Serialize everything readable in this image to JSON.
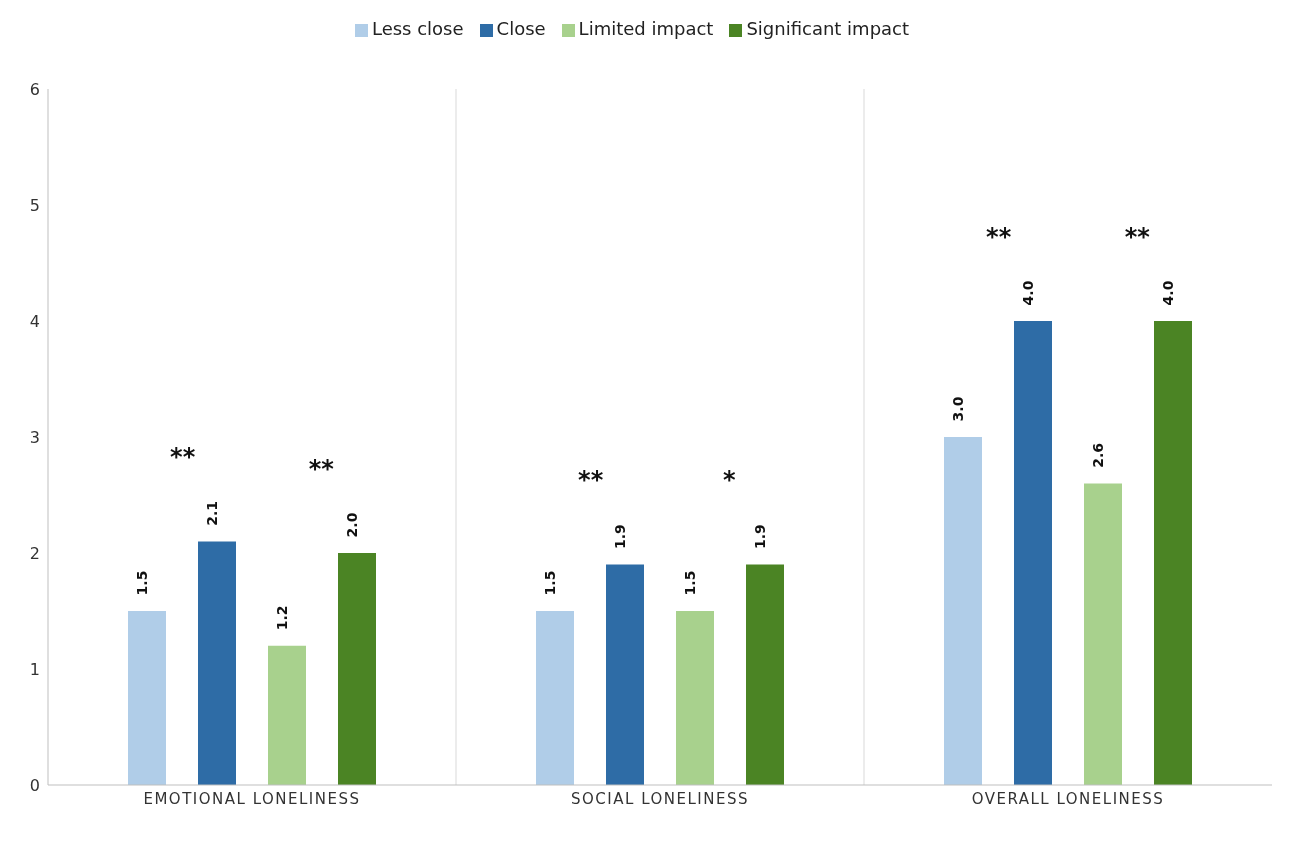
{
  "chart_data": {
    "type": "bar",
    "categories": [
      "EMOTIONAL  LONELINESS",
      "SOCIAL  LONELINESS",
      "OVERALL  LONELINESS"
    ],
    "series": [
      {
        "name": "Less close",
        "color": "#b0cde8",
        "values": [
          1.5,
          1.5,
          3.0
        ],
        "value_labels": [
          "1.5",
          "1.5",
          "3.0"
        ]
      },
      {
        "name": "Close",
        "color": "#2e6ca6",
        "values": [
          2.1,
          1.9,
          4.0
        ],
        "value_labels": [
          "2.1",
          "1.9",
          "4.0"
        ]
      },
      {
        "name": "Limited impact",
        "color": "#a8d18d",
        "values": [
          1.2,
          1.5,
          2.6
        ],
        "value_labels": [
          "1.2",
          "1.5",
          "2.6"
        ]
      },
      {
        "name": "Significant impact",
        "color": "#4b8424",
        "values": [
          2.0,
          1.9,
          4.0
        ],
        "value_labels": [
          "2.0",
          "1.9",
          "4.0"
        ]
      }
    ],
    "ylim": [
      0,
      6
    ],
    "yticks": [
      0,
      1,
      2,
      3,
      4,
      5,
      6
    ],
    "grid": "x",
    "legend": "top",
    "annotations": [
      "**",
      "**",
      "**",
      "*",
      "**",
      "**"
    ]
  }
}
